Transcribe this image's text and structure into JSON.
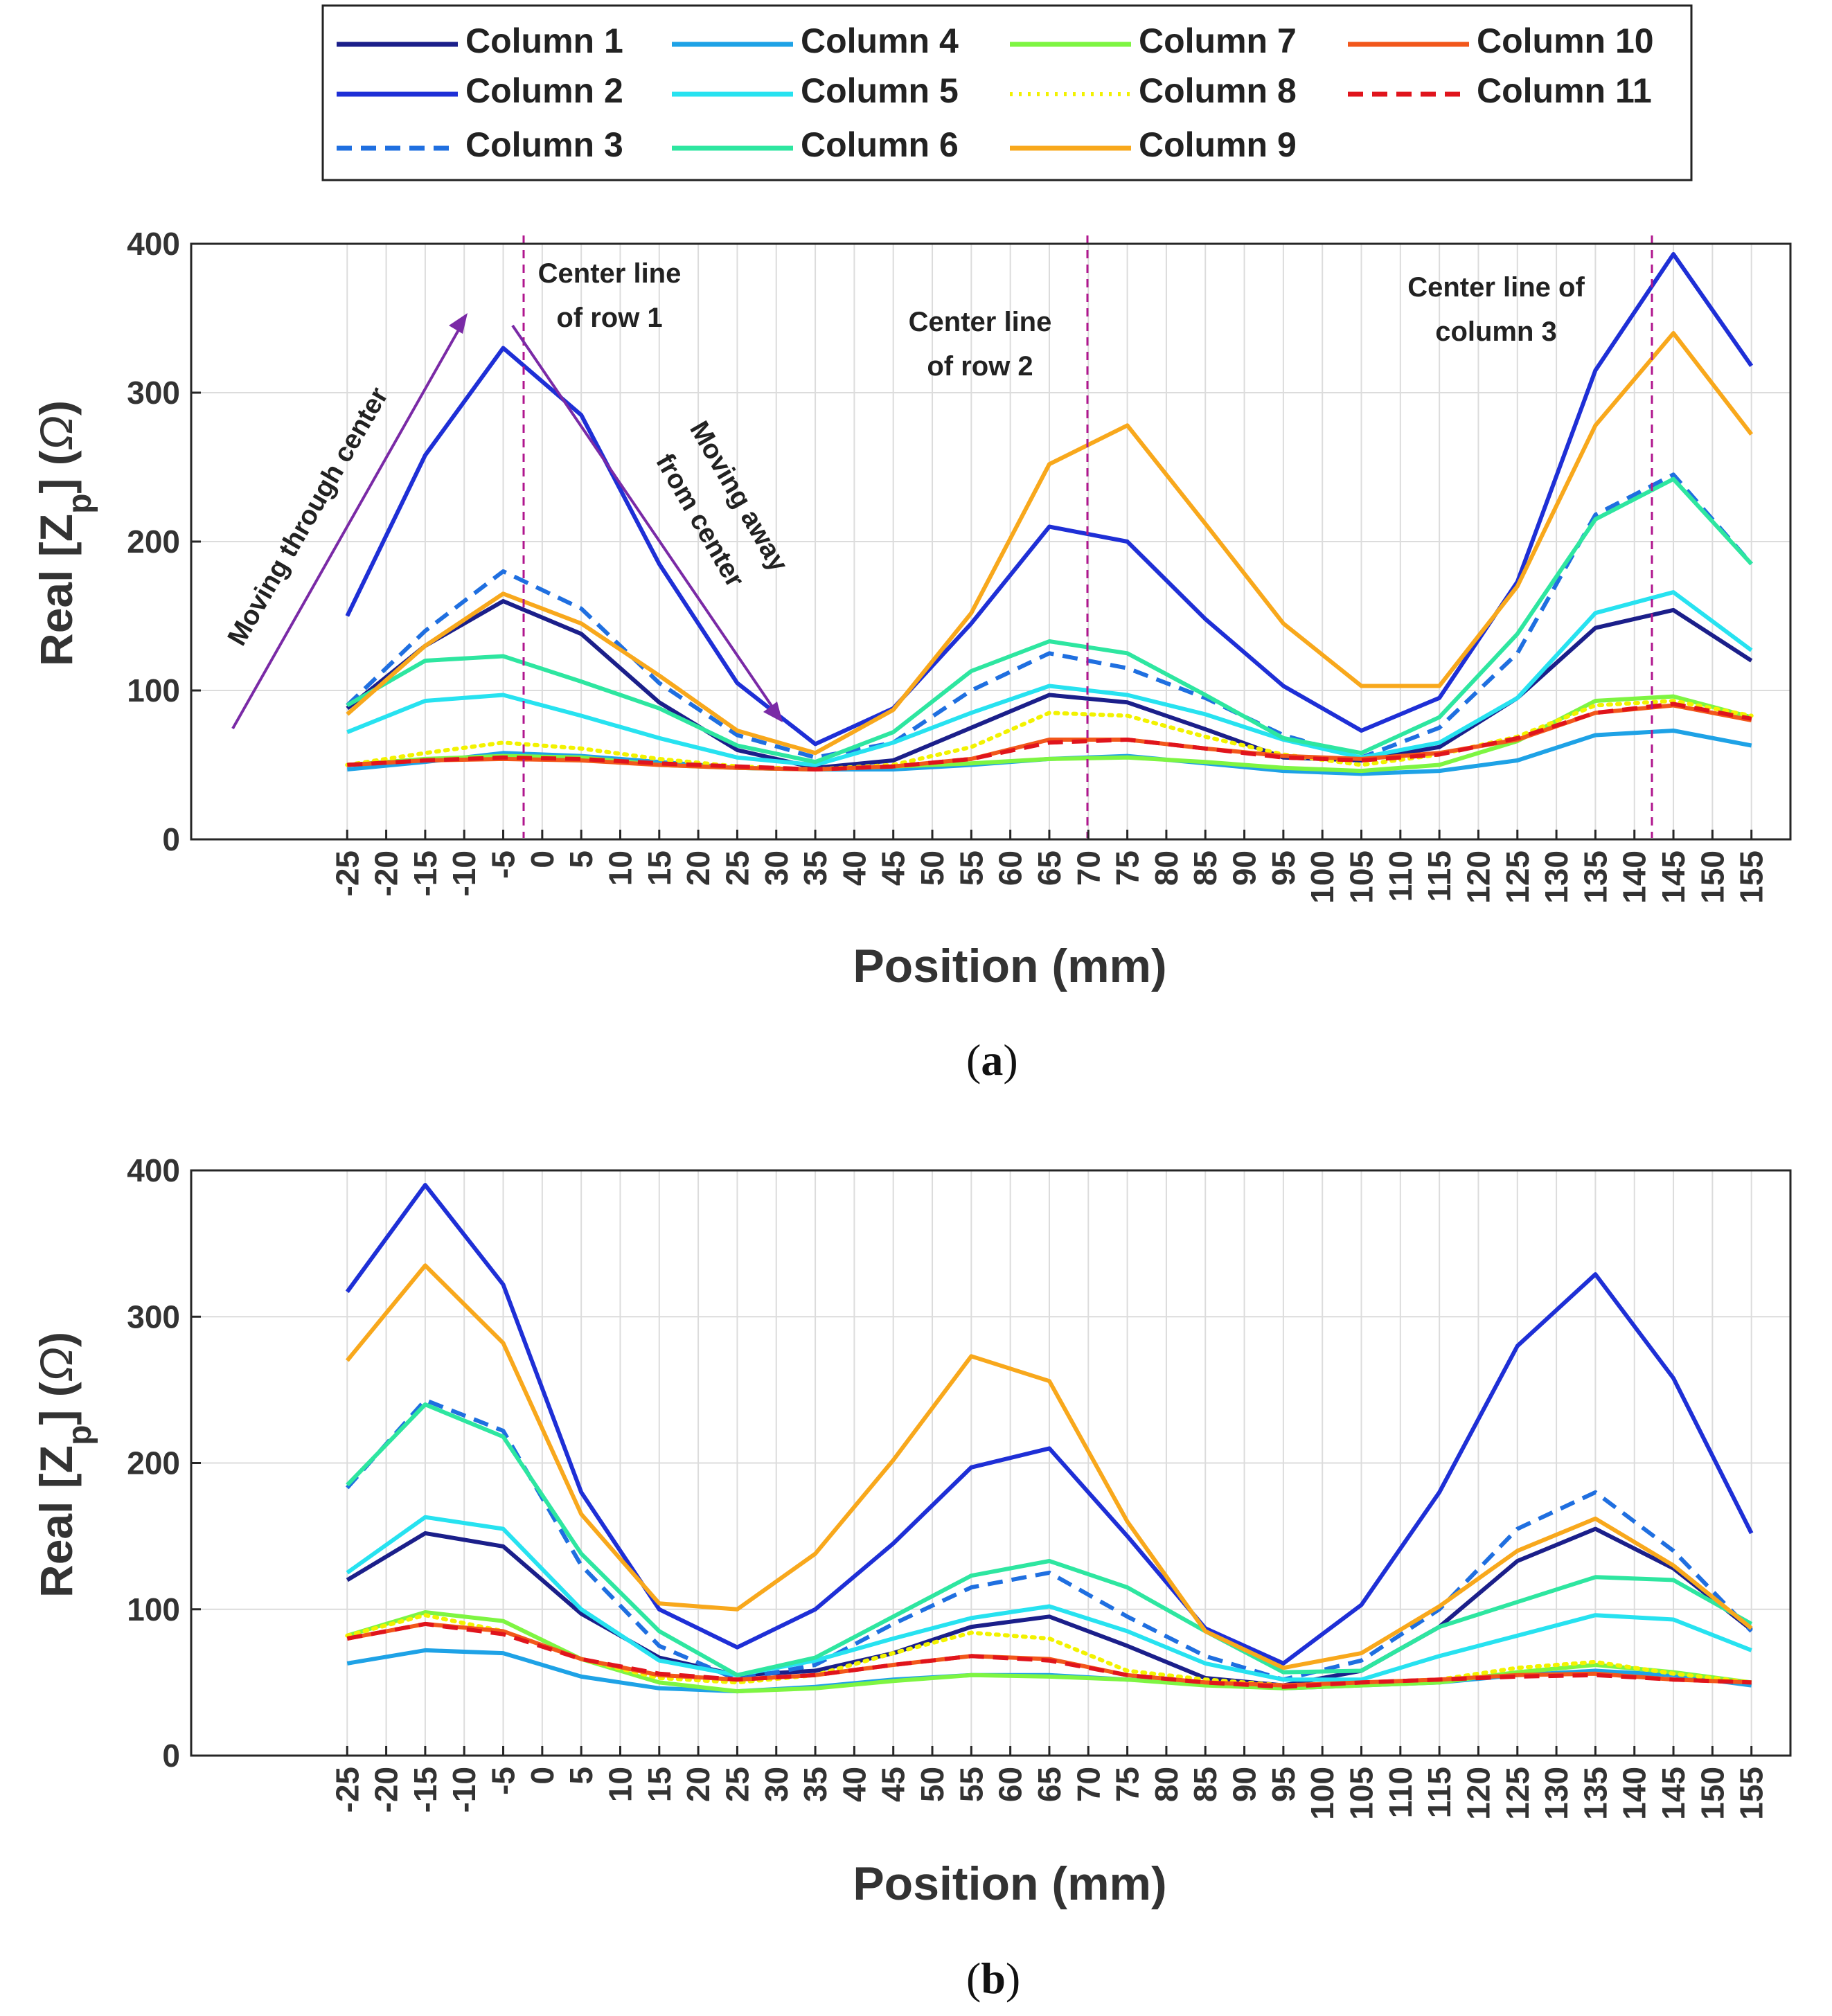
{
  "figure": {
    "x_ticks": [
      -25,
      -20,
      -15,
      -10,
      -5,
      0,
      5,
      10,
      15,
      20,
      25,
      30,
      35,
      40,
      45,
      50,
      55,
      60,
      65,
      70,
      75,
      80,
      85,
      90,
      95,
      100,
      105,
      110,
      115,
      120,
      125,
      130,
      135,
      140,
      145,
      150,
      155
    ],
    "y_ticks": [
      0,
      100,
      200,
      300,
      400
    ],
    "legend": [
      {
        "name": "Column 1",
        "color": "#1b1f8a",
        "style": "solid"
      },
      {
        "name": "Column 2",
        "color": "#1e2fd6",
        "style": "solid"
      },
      {
        "name": "Column 3",
        "color": "#1f6fe0",
        "style": "dashed"
      },
      {
        "name": "Column 4",
        "color": "#1ea2e6",
        "style": "solid"
      },
      {
        "name": "Column 5",
        "color": "#27e2f0",
        "style": "solid"
      },
      {
        "name": "Column 6",
        "color": "#2ee6a0",
        "style": "solid"
      },
      {
        "name": "Column 7",
        "color": "#7ef542",
        "style": "solid"
      },
      {
        "name": "Column 8",
        "color": "#f2f200",
        "style": "dotted"
      },
      {
        "name": "Column 9",
        "color": "#f8a81c",
        "style": "solid"
      },
      {
        "name": "Column 10",
        "color": "#f2571b",
        "style": "solid"
      },
      {
        "name": "Column 11",
        "color": "#e0141c",
        "style": "dashed"
      }
    ]
  },
  "chart_data": [
    {
      "type": "line",
      "panel_label": "(a)",
      "panel_letter": "a",
      "xlabel": "Position (mm)",
      "ylabel_main": "Real [Z",
      "ylabel_sub": "p",
      "ylabel_end": "] (",
      "ylabel_omega": "Ω",
      "ylabel_close": ")",
      "ylim": [
        0,
        400
      ],
      "grid": true,
      "x": [
        -25,
        -15,
        -5,
        5,
        15,
        25,
        35,
        45,
        55,
        65,
        75,
        85,
        95,
        105,
        115,
        125,
        135,
        145,
        155
      ],
      "series": [
        {
          "name": "Column 1",
          "values": [
            88,
            130,
            160,
            138,
            92,
            60,
            48,
            53,
            75,
            97,
            92,
            74,
            55,
            53,
            62,
            95,
            142,
            154,
            120
          ]
        },
        {
          "name": "Column 2",
          "values": [
            150,
            258,
            330,
            285,
            185,
            105,
            64,
            88,
            145,
            210,
            200,
            148,
            103,
            73,
            95,
            173,
            315,
            393,
            318
          ]
        },
        {
          "name": "Column 3",
          "values": [
            90,
            140,
            180,
            155,
            105,
            70,
            55,
            65,
            100,
            125,
            115,
            95,
            70,
            55,
            75,
            125,
            218,
            245,
            185
          ]
        },
        {
          "name": "Column 4",
          "values": [
            47,
            52,
            58,
            56,
            52,
            48,
            47,
            47,
            50,
            54,
            56,
            51,
            46,
            44,
            46,
            53,
            70,
            73,
            63
          ]
        },
        {
          "name": "Column 5",
          "values": [
            72,
            93,
            97,
            83,
            68,
            55,
            50,
            65,
            85,
            103,
            97,
            84,
            67,
            55,
            65,
            95,
            152,
            166,
            127
          ]
        },
        {
          "name": "Column 6",
          "values": [
            90,
            120,
            123,
            106,
            88,
            63,
            52,
            72,
            113,
            133,
            125,
            97,
            68,
            58,
            82,
            138,
            215,
            242,
            185
          ]
        },
        {
          "name": "Column 7",
          "values": [
            50,
            54,
            56,
            55,
            50,
            48,
            47,
            49,
            51,
            54,
            55,
            52,
            48,
            46,
            50,
            66,
            93,
            96,
            82
          ]
        },
        {
          "name": "Column 8",
          "values": [
            50,
            58,
            65,
            61,
            54,
            49,
            47,
            50,
            62,
            85,
            83,
            69,
            57,
            50,
            57,
            69,
            90,
            93,
            83
          ]
        },
        {
          "name": "Column 9",
          "values": [
            84,
            130,
            165,
            145,
            110,
            73,
            58,
            87,
            152,
            252,
            278,
            212,
            145,
            103,
            103,
            170,
            278,
            340,
            272
          ]
        },
        {
          "name": "Column 10",
          "values": [
            50,
            53,
            54,
            53,
            50,
            48,
            47,
            49,
            54,
            67,
            67,
            61,
            56,
            54,
            58,
            67,
            85,
            90,
            80
          ]
        },
        {
          "name": "Column 11",
          "values": [
            50,
            53,
            55,
            54,
            51,
            49,
            47,
            49,
            54,
            65,
            67,
            61,
            55,
            53,
            57,
            68,
            85,
            91,
            81
          ]
        }
      ],
      "annotations": {
        "moving_through": "Moving through center",
        "moving_away_1": "Moving away",
        "moving_away_2": "from center",
        "row1_line1": "Center line",
        "row1_line2": "of row 1",
        "row2_line1": "Center line",
        "row2_line2": "of row 2",
        "col3_line1": "Center line of",
        "col3_line2": "column 3",
        "center_lines_x": [
          0,
          70,
          140
        ]
      }
    },
    {
      "type": "line",
      "panel_label": "(b)",
      "panel_letter": "b",
      "xlabel": "Position (mm)",
      "ylabel_main": "Real [Z",
      "ylabel_sub": "p",
      "ylabel_end": "] (",
      "ylabel_omega": "Ω",
      "ylabel_close": ")",
      "ylim": [
        0,
        400
      ],
      "grid": true,
      "x": [
        -25,
        -15,
        -5,
        5,
        15,
        25,
        35,
        45,
        55,
        65,
        75,
        85,
        95,
        105,
        115,
        125,
        135,
        145,
        155
      ],
      "series": [
        {
          "name": "Column 1",
          "values": [
            120,
            152,
            143,
            97,
            67,
            55,
            58,
            70,
            88,
            95,
            75,
            53,
            48,
            58,
            88,
            133,
            155,
            128,
            86
          ]
        },
        {
          "name": "Column 2",
          "values": [
            317,
            390,
            322,
            180,
            100,
            74,
            100,
            145,
            197,
            210,
            150,
            87,
            63,
            103,
            180,
            280,
            329,
            258,
            152
          ]
        },
        {
          "name": "Column 3",
          "values": [
            183,
            243,
            222,
            130,
            75,
            52,
            62,
            90,
            115,
            125,
            95,
            68,
            52,
            65,
            100,
            155,
            180,
            140,
            85
          ]
        },
        {
          "name": "Column 4",
          "values": [
            63,
            72,
            70,
            54,
            46,
            44,
            47,
            52,
            55,
            55,
            52,
            50,
            46,
            48,
            50,
            55,
            58,
            55,
            48
          ]
        },
        {
          "name": "Column 5",
          "values": [
            125,
            163,
            155,
            100,
            65,
            55,
            65,
            80,
            94,
            102,
            85,
            63,
            52,
            52,
            68,
            82,
            96,
            93,
            72
          ]
        },
        {
          "name": "Column 6",
          "values": [
            185,
            240,
            218,
            138,
            85,
            55,
            67,
            95,
            123,
            133,
            115,
            85,
            57,
            58,
            88,
            105,
            122,
            120,
            90
          ]
        },
        {
          "name": "Column 7",
          "values": [
            82,
            98,
            92,
            66,
            50,
            44,
            46,
            51,
            55,
            54,
            52,
            48,
            46,
            48,
            50,
            57,
            62,
            57,
            50
          ]
        },
        {
          "name": "Column 8",
          "values": [
            82,
            96,
            85,
            66,
            53,
            50,
            55,
            70,
            84,
            80,
            58,
            52,
            48,
            50,
            52,
            60,
            64,
            56,
            50
          ]
        },
        {
          "name": "Column 9",
          "values": [
            270,
            335,
            282,
            165,
            104,
            100,
            138,
            202,
            273,
            256,
            160,
            85,
            60,
            70,
            102,
            140,
            162,
            130,
            87
          ]
        },
        {
          "name": "Column 10",
          "values": [
            80,
            90,
            85,
            66,
            55,
            52,
            55,
            62,
            68,
            66,
            55,
            50,
            48,
            50,
            52,
            55,
            56,
            52,
            50
          ]
        },
        {
          "name": "Column 11",
          "values": [
            80,
            90,
            83,
            66,
            56,
            52,
            55,
            62,
            68,
            65,
            55,
            50,
            47,
            50,
            52,
            54,
            55,
            52,
            50
          ]
        }
      ]
    }
  ]
}
